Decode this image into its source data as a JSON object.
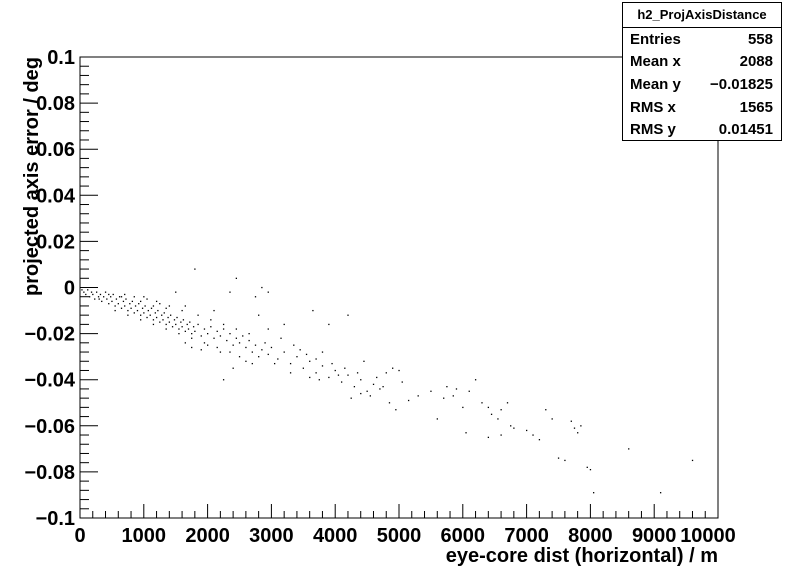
{
  "chart_data": {
    "type": "scatter",
    "title": "",
    "xlabel": "eye-core dist (horizontal) / m",
    "ylabel": "projected axis error / deg",
    "xlim": [
      0,
      10000
    ],
    "ylim": [
      -0.1,
      0.1
    ],
    "x_ticks": [
      0,
      1000,
      2000,
      3000,
      4000,
      5000,
      6000,
      7000,
      8000,
      9000,
      10000
    ],
    "x_tick_labels": [
      "0",
      "1000",
      "2000",
      "3000",
      "4000",
      "5000",
      "6000",
      "7000",
      "8000",
      "9000",
      "10000"
    ],
    "y_ticks": [
      -0.1,
      -0.08,
      -0.06,
      -0.04,
      -0.02,
      0,
      0.02,
      0.04,
      0.06,
      0.08,
      0.1
    ],
    "y_tick_labels": [
      "−0.1",
      "−0.08",
      "−0.06",
      "−0.04",
      "−0.02",
      "0",
      "0.02",
      "0.04",
      "0.06",
      "0.08",
      "0.1"
    ],
    "grid": false,
    "legend": "none",
    "point_color": "#000000",
    "points": [
      [
        30,
        -0.001
      ],
      [
        60,
        -0.002
      ],
      [
        90,
        -0.003
      ],
      [
        120,
        -0.001
      ],
      [
        150,
        -0.004
      ],
      [
        180,
        -0.002
      ],
      [
        200,
        -0.003
      ],
      [
        230,
        -0.005
      ],
      [
        260,
        -0.002
      ],
      [
        290,
        -0.004
      ],
      [
        320,
        -0.003
      ],
      [
        340,
        -0.006
      ],
      [
        370,
        -0.004
      ],
      [
        400,
        -0.002
      ],
      [
        420,
        -0.005
      ],
      [
        450,
        -0.007
      ],
      [
        480,
        -0.004
      ],
      [
        500,
        -0.006
      ],
      [
        520,
        -0.003
      ],
      [
        550,
        -0.008
      ],
      [
        570,
        -0.005
      ],
      [
        600,
        -0.007
      ],
      [
        620,
        -0.004
      ],
      [
        650,
        -0.009
      ],
      [
        680,
        -0.006
      ],
      [
        700,
        -0.008
      ],
      [
        720,
        -0.005
      ],
      [
        750,
        -0.01
      ],
      [
        780,
        -0.007
      ],
      [
        800,
        -0.009
      ],
      [
        820,
        -0.006
      ],
      [
        850,
        -0.011
      ],
      [
        870,
        -0.008
      ],
      [
        900,
        -0.01
      ],
      [
        920,
        -0.007
      ],
      [
        950,
        -0.012
      ],
      [
        980,
        -0.009
      ],
      [
        1000,
        -0.011
      ],
      [
        1020,
        -0.008
      ],
      [
        1050,
        -0.013
      ],
      [
        1070,
        -0.01
      ],
      [
        1100,
        -0.012
      ],
      [
        1120,
        -0.009
      ],
      [
        1150,
        -0.014
      ],
      [
        1180,
        -0.011
      ],
      [
        1200,
        -0.013
      ],
      [
        1220,
        -0.01
      ],
      [
        1250,
        -0.015
      ],
      [
        1280,
        -0.012
      ],
      [
        1300,
        -0.014
      ],
      [
        1320,
        -0.011
      ],
      [
        1350,
        -0.016
      ],
      [
        1380,
        -0.013
      ],
      [
        1400,
        -0.015
      ],
      [
        1420,
        -0.012
      ],
      [
        1450,
        -0.017
      ],
      [
        1480,
        -0.014
      ],
      [
        1500,
        -0.016
      ],
      [
        1520,
        -0.013
      ],
      [
        1550,
        -0.018
      ],
      [
        1580,
        -0.015
      ],
      [
        1600,
        -0.017
      ],
      [
        1620,
        -0.014
      ],
      [
        1650,
        -0.019
      ],
      [
        1680,
        -0.016
      ],
      [
        1700,
        -0.018
      ],
      [
        1720,
        -0.015
      ],
      [
        1750,
        -0.02
      ],
      [
        1780,
        -0.017
      ],
      [
        1800,
        -0.019
      ],
      [
        1850,
        -0.016
      ],
      [
        1900,
        -0.021
      ],
      [
        1950,
        -0.018
      ],
      [
        2000,
        -0.02
      ],
      [
        2050,
        -0.017
      ],
      [
        2100,
        -0.022
      ],
      [
        2150,
        -0.019
      ],
      [
        2200,
        -0.021
      ],
      [
        2250,
        -0.018
      ],
      [
        2300,
        -0.023
      ],
      [
        2350,
        -0.02
      ],
      [
        2400,
        -0.025
      ],
      [
        2450,
        -0.022
      ],
      [
        2500,
        -0.024
      ],
      [
        2550,
        -0.021
      ],
      [
        2600,
        -0.026
      ],
      [
        2650,
        -0.023
      ],
      [
        2700,
        -0.028
      ],
      [
        2750,
        -0.025
      ],
      [
        2800,
        -0.03
      ],
      [
        2850,
        -0.027
      ],
      [
        2900,
        -0.024
      ],
      [
        2950,
        -0.029
      ],
      [
        3000,
        -0.026
      ],
      [
        3100,
        -0.031
      ],
      [
        3200,
        -0.028
      ],
      [
        3300,
        -0.033
      ],
      [
        3400,
        -0.03
      ],
      [
        3500,
        -0.035
      ],
      [
        3600,
        -0.032
      ],
      [
        3700,
        -0.037
      ],
      [
        3800,
        -0.034
      ],
      [
        3900,
        -0.039
      ],
      [
        4000,
        -0.036
      ],
      [
        4100,
        -0.041
      ],
      [
        4200,
        -0.038
      ],
      [
        4300,
        -0.043
      ],
      [
        4400,
        -0.04
      ],
      [
        4500,
        -0.045
      ],
      [
        4600,
        -0.042
      ],
      [
        1800,
        0.008
      ],
      [
        2450,
        0.004
      ],
      [
        2850,
        0.0
      ],
      [
        2950,
        -0.002
      ],
      [
        2750,
        -0.004
      ],
      [
        2350,
        -0.002
      ],
      [
        1500,
        -0.002
      ],
      [
        1650,
        -0.008
      ],
      [
        2100,
        -0.01
      ],
      [
        2800,
        -0.012
      ],
      [
        3200,
        -0.016
      ],
      [
        3650,
        -0.01
      ],
      [
        3900,
        -0.016
      ],
      [
        4200,
        -0.012
      ],
      [
        2250,
        -0.04
      ],
      [
        2400,
        -0.035
      ],
      [
        2700,
        -0.033
      ],
      [
        3050,
        -0.033
      ],
      [
        3300,
        -0.037
      ],
      [
        3600,
        -0.039
      ],
      [
        3750,
        -0.04
      ],
      [
        4050,
        -0.038
      ],
      [
        4250,
        -0.048
      ],
      [
        4400,
        -0.046
      ],
      [
        4550,
        -0.047
      ],
      [
        4700,
        -0.044
      ],
      [
        4850,
        -0.05
      ],
      [
        4950,
        -0.053
      ],
      [
        4800,
        -0.037
      ],
      [
        4900,
        -0.035
      ],
      [
        5000,
        -0.036
      ],
      [
        4750,
        -0.043
      ],
      [
        5300,
        -0.047
      ],
      [
        5500,
        -0.045
      ],
      [
        5600,
        -0.057
      ],
      [
        5700,
        -0.048
      ],
      [
        5750,
        -0.043
      ],
      [
        5900,
        -0.044
      ],
      [
        6000,
        -0.052
      ],
      [
        6100,
        -0.045
      ],
      [
        6200,
        -0.04
      ],
      [
        6300,
        -0.05
      ],
      [
        6400,
        -0.052
      ],
      [
        6450,
        -0.055
      ],
      [
        6550,
        -0.057
      ],
      [
        6600,
        -0.053
      ],
      [
        6700,
        -0.05
      ],
      [
        6750,
        -0.06
      ],
      [
        6400,
        -0.065
      ],
      [
        6600,
        -0.064
      ],
      [
        6800,
        -0.061
      ],
      [
        7000,
        -0.062
      ],
      [
        7100,
        -0.064
      ],
      [
        7200,
        -0.066
      ],
      [
        7300,
        -0.053
      ],
      [
        7400,
        -0.057
      ],
      [
        7500,
        -0.074
      ],
      [
        7600,
        -0.075
      ],
      [
        7700,
        -0.058
      ],
      [
        7750,
        -0.061
      ],
      [
        7800,
        -0.063
      ],
      [
        7850,
        -0.06
      ],
      [
        7950,
        -0.078
      ],
      [
        8000,
        -0.079
      ],
      [
        8050,
        -0.089
      ],
      [
        8600,
        -0.07
      ],
      [
        9100,
        -0.089
      ],
      [
        9600,
        -0.075
      ],
      [
        6050,
        -0.063
      ],
      [
        5850,
        -0.047
      ],
      [
        300,
        -0.005
      ],
      [
        450,
        -0.003
      ],
      [
        650,
        -0.004
      ],
      [
        700,
        -0.003
      ],
      [
        850,
        -0.004
      ],
      [
        950,
        -0.006
      ],
      [
        1050,
        -0.005
      ],
      [
        1150,
        -0.008
      ],
      [
        1250,
        -0.007
      ],
      [
        1350,
        -0.009
      ],
      [
        550,
        -0.01
      ],
      [
        750,
        -0.012
      ],
      [
        950,
        -0.014
      ],
      [
        1150,
        -0.016
      ],
      [
        1350,
        -0.018
      ],
      [
        1550,
        -0.02
      ],
      [
        1750,
        -0.022
      ],
      [
        1950,
        -0.024
      ],
      [
        2150,
        -0.026
      ],
      [
        2350,
        -0.028
      ],
      [
        1200,
        -0.006
      ],
      [
        1400,
        -0.008
      ],
      [
        1600,
        -0.01
      ],
      [
        1850,
        -0.012
      ],
      [
        2050,
        -0.014
      ],
      [
        2250,
        -0.016
      ],
      [
        2450,
        -0.018
      ],
      [
        2650,
        -0.02
      ],
      [
        2950,
        -0.018
      ],
      [
        3150,
        -0.022
      ],
      [
        1000,
        -0.004
      ],
      [
        1650,
        -0.024
      ],
      [
        1750,
        -0.026
      ],
      [
        1900,
        -0.027
      ],
      [
        2000,
        -0.025
      ],
      [
        2200,
        -0.028
      ],
      [
        2500,
        -0.03
      ],
      [
        2600,
        -0.032
      ],
      [
        3350,
        -0.025
      ],
      [
        3450,
        -0.027
      ],
      [
        3550,
        -0.029
      ],
      [
        3700,
        -0.031
      ],
      [
        3800,
        -0.028
      ],
      [
        3950,
        -0.033
      ],
      [
        4150,
        -0.035
      ],
      [
        4350,
        -0.037
      ],
      [
        4450,
        -0.032
      ],
      [
        4650,
        -0.039
      ],
      [
        5050,
        -0.041
      ],
      [
        5150,
        -0.049
      ]
    ]
  },
  "stats_box": {
    "title": "h2_ProjAxisDistance",
    "rows": [
      {
        "label": "Entries",
        "value": "558"
      },
      {
        "label": "Mean x",
        "value": "2088"
      },
      {
        "label": "Mean y",
        "value": "−0.01825"
      },
      {
        "label": "RMS x",
        "value": "1565"
      },
      {
        "label": "RMS y",
        "value": "0.01451"
      }
    ]
  }
}
